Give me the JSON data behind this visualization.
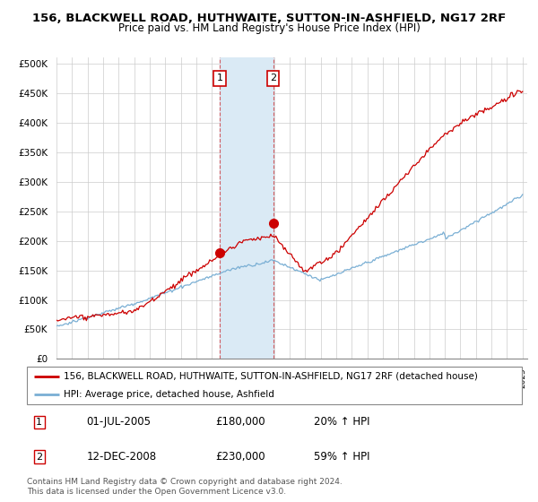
{
  "title": "156, BLACKWELL ROAD, HUTHWAITE, SUTTON-IN-ASHFIELD, NG17 2RF",
  "subtitle": "Price paid vs. HM Land Registry's House Price Index (HPI)",
  "ylabel_ticks": [
    "£0",
    "£50K",
    "£100K",
    "£150K",
    "£200K",
    "£250K",
    "£300K",
    "£350K",
    "£400K",
    "£450K",
    "£500K"
  ],
  "ytick_values": [
    0,
    50000,
    100000,
    150000,
    200000,
    250000,
    300000,
    350000,
    400000,
    450000,
    500000
  ],
  "ylim": [
    0,
    510000
  ],
  "xlim_start": 1995.0,
  "xlim_end": 2025.3,
  "hpi_color": "#7aafd4",
  "price_color": "#cc0000",
  "marker_color": "#cc0000",
  "shade_color": "#daeaf5",
  "transaction1_x": 2005.5,
  "transaction1_y": 180000,
  "transaction2_x": 2008.95,
  "transaction2_y": 230000,
  "legend_label1": "156, BLACKWELL ROAD, HUTHWAITE, SUTTON-IN-ASHFIELD, NG17 2RF (detached house)",
  "legend_label2": "HPI: Average price, detached house, Ashfield",
  "table_row1": [
    "1",
    "01-JUL-2005",
    "£180,000",
    "20% ↑ HPI"
  ],
  "table_row2": [
    "2",
    "12-DEC-2008",
    "£230,000",
    "59% ↑ HPI"
  ],
  "footnote": "Contains HM Land Registry data © Crown copyright and database right 2024.\nThis data is licensed under the Open Government Licence v3.0.",
  "title_fontsize": 9.5,
  "subtitle_fontsize": 8.5,
  "tick_fontsize": 7.5,
  "legend_fontsize": 8
}
